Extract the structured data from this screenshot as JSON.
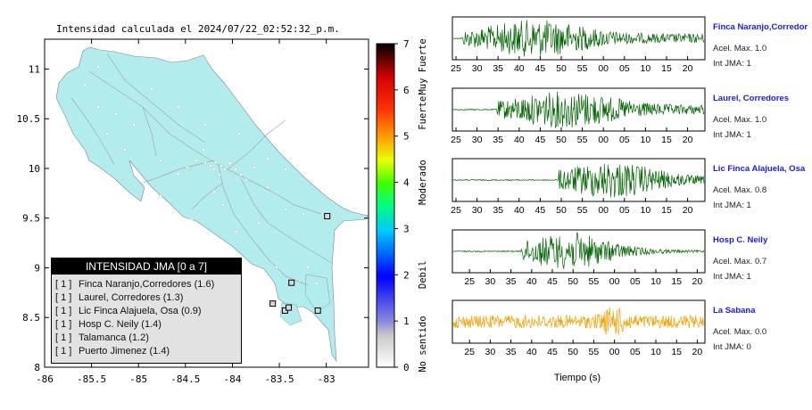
{
  "map": {
    "title": "Intensidad calculada el 2024/07/22_02:52:32_p.m.",
    "x_ticks": [
      "-86",
      "-85.5",
      "-85",
      "-84.5",
      "-84",
      "-83.5",
      "-83"
    ],
    "y_ticks": [
      "11",
      "10.5",
      "10",
      "9.5",
      "9",
      "8.5",
      "8"
    ],
    "land_color": "#b2ecec"
  },
  "colorbar": {
    "tick_labels": [
      "0",
      "1",
      "2",
      "3",
      "4",
      "5",
      "6",
      "7"
    ],
    "category_labels": [
      "No sentido",
      "Debil",
      "Moderado",
      "Fuerte",
      "Muy Fuerte"
    ]
  },
  "legend": {
    "title": "INTENSIDAD JMA [0 a 7]",
    "rows": [
      {
        "level": "[ 1 ]",
        "name": "Finca Naranjo,Corredores (1.6)"
      },
      {
        "level": "[ 1 ]",
        "name": "Laurel, Corredores (1.3)"
      },
      {
        "level": "[ 1 ]",
        "name": "Lic Finca Alajuela, Osa (0.9)"
      },
      {
        "level": "[ 1 ]",
        "name": "Hosp C. Neily (1.4)"
      },
      {
        "level": "[ 1 ]",
        "name": "Talamanca (1.2)"
      },
      {
        "level": "[ 1 ]",
        "name": "Puerto Jimenez (1.4)"
      }
    ]
  },
  "chart_data": [
    {
      "type": "map",
      "title": "Intensidad calculada el 2024/07/22_02:52:32_p.m.",
      "xlim": [
        -86,
        -82.55
      ],
      "ylim": [
        8,
        11.3
      ],
      "stations": [
        {
          "lon": -83.57,
          "lat": 8.64
        },
        {
          "lon": -83.44,
          "lat": 8.57
        },
        {
          "lon": -83.37,
          "lat": 8.85
        },
        {
          "lon": -83.09,
          "lat": 8.57
        },
        {
          "lon": -83.4,
          "lat": 8.6
        },
        {
          "lon": -82.99,
          "lat": 9.52
        }
      ]
    },
    {
      "type": "line",
      "xlabel": "Tiempo (s)",
      "time_ticks_a": [
        "25",
        "30",
        "35",
        "40",
        "45",
        "50",
        "55",
        "00",
        "05",
        "10",
        "15",
        "20"
      ],
      "time_ticks_b": [
        "20",
        "25",
        "30",
        "35",
        "40",
        "45",
        "50",
        "55",
        "00",
        "05",
        "10",
        "15",
        "20"
      ],
      "series": [
        {
          "name": "Finca Naranjo,Corredor",
          "acel_label": "Acel. Max. 1.0",
          "jma_label": "Int JMA: 1",
          "acel_max": 1.0,
          "int_jma": 1,
          "color": "#006400",
          "onset": 0.04,
          "peak": 0.33,
          "decay": 0.0
        },
        {
          "name": "Laurel, Corredores",
          "acel_label": "Acel. Max. 1.0",
          "jma_label": "Int JMA: 1",
          "acel_max": 1.0,
          "int_jma": 1,
          "color": "#006400",
          "onset": 0.17,
          "peak": 0.45,
          "decay": 0.0
        },
        {
          "name": "Lic Finca Alajuela, Osa",
          "acel_label": "Acel. Max. 0.8",
          "jma_label": "Int JMA: 1",
          "acel_max": 0.8,
          "int_jma": 1,
          "color": "#006400",
          "onset": 0.42,
          "peak": 0.65,
          "decay": 0.4
        },
        {
          "name": "Hosp C. Neily",
          "acel_label": "Acel. Max. 0.7",
          "jma_label": "Int JMA: 1",
          "acel_max": 0.7,
          "int_jma": 1,
          "color": "#006400",
          "onset": 0.27,
          "peak": 0.5,
          "decay": 1.0
        },
        {
          "name": "La Sabana",
          "acel_label": "Acel. Max. 0.0",
          "jma_label": "Int JMA: 0",
          "acel_max": 0.0,
          "int_jma": 0,
          "color": "#f0a000",
          "onset": 0.0,
          "peak": 0.64,
          "decay": 0.0
        }
      ]
    }
  ]
}
